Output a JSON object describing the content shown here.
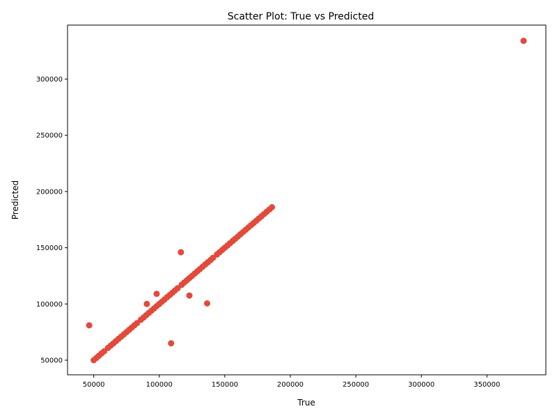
{
  "chart_data": {
    "type": "scatter",
    "title": "Scatter Plot: True vs Predicted",
    "xlabel": "True",
    "ylabel": "Predicted",
    "xlim": [
      30000,
      395000
    ],
    "ylim": [
      37000,
      348000
    ],
    "xticks": [
      50000,
      100000,
      150000,
      200000,
      250000,
      300000,
      350000
    ],
    "yticks": [
      50000,
      100000,
      150000,
      200000,
      250000,
      300000
    ],
    "grid": false,
    "legend": "none",
    "point_color": "#e24a3b",
    "series": [
      {
        "points": [
          {
            "x": 50000,
            "y": 50000
          },
          {
            "x": 52000,
            "y": 52000
          },
          {
            "x": 54000,
            "y": 54000
          },
          {
            "x": 56000,
            "y": 56000
          },
          {
            "x": 58000,
            "y": 58000
          },
          {
            "x": 61000,
            "y": 61000
          },
          {
            "x": 63000,
            "y": 63000
          },
          {
            "x": 65000,
            "y": 65000
          },
          {
            "x": 67000,
            "y": 67000
          },
          {
            "x": 69000,
            "y": 69000
          },
          {
            "x": 71000,
            "y": 71000
          },
          {
            "x": 73000,
            "y": 73000
          },
          {
            "x": 75000,
            "y": 75000
          },
          {
            "x": 77000,
            "y": 77000
          },
          {
            "x": 79000,
            "y": 79000
          },
          {
            "x": 81000,
            "y": 81000
          },
          {
            "x": 83000,
            "y": 83000
          },
          {
            "x": 86000,
            "y": 86000
          },
          {
            "x": 88000,
            "y": 88000
          },
          {
            "x": 90000,
            "y": 90000
          },
          {
            "x": 92000,
            "y": 92000
          },
          {
            "x": 94000,
            "y": 94000
          },
          {
            "x": 96000,
            "y": 96000
          },
          {
            "x": 98000,
            "y": 98000
          },
          {
            "x": 100000,
            "y": 100000
          },
          {
            "x": 102000,
            "y": 102000
          },
          {
            "x": 104000,
            "y": 104000
          },
          {
            "x": 106000,
            "y": 106000
          },
          {
            "x": 108000,
            "y": 108000
          },
          {
            "x": 110000,
            "y": 110000
          },
          {
            "x": 112000,
            "y": 112000
          },
          {
            "x": 114000,
            "y": 114000
          },
          {
            "x": 117000,
            "y": 117000
          },
          {
            "x": 119000,
            "y": 119000
          },
          {
            "x": 121000,
            "y": 121000
          },
          {
            "x": 123000,
            "y": 123000
          },
          {
            "x": 125000,
            "y": 125000
          },
          {
            "x": 127000,
            "y": 127000
          },
          {
            "x": 129000,
            "y": 129000
          },
          {
            "x": 131000,
            "y": 131000
          },
          {
            "x": 133000,
            "y": 133000
          },
          {
            "x": 135000,
            "y": 135000
          },
          {
            "x": 137000,
            "y": 137000
          },
          {
            "x": 139000,
            "y": 139000
          },
          {
            "x": 141000,
            "y": 141000
          },
          {
            "x": 144000,
            "y": 144000
          },
          {
            "x": 146000,
            "y": 146000
          },
          {
            "x": 148000,
            "y": 148000
          },
          {
            "x": 150000,
            "y": 150000
          },
          {
            "x": 152000,
            "y": 152000
          },
          {
            "x": 154000,
            "y": 154000
          },
          {
            "x": 156000,
            "y": 156000
          },
          {
            "x": 158000,
            "y": 158000
          },
          {
            "x": 160000,
            "y": 160000
          },
          {
            "x": 162000,
            "y": 162000
          },
          {
            "x": 164000,
            "y": 164000
          },
          {
            "x": 166000,
            "y": 166000
          },
          {
            "x": 168000,
            "y": 168000
          },
          {
            "x": 170000,
            "y": 170000
          },
          {
            "x": 172000,
            "y": 172000
          },
          {
            "x": 174000,
            "y": 174000
          },
          {
            "x": 176000,
            "y": 176000
          },
          {
            "x": 178000,
            "y": 178000
          },
          {
            "x": 180000,
            "y": 180000
          },
          {
            "x": 182000,
            "y": 182000
          },
          {
            "x": 184000,
            "y": 184000
          },
          {
            "x": 186000,
            "y": 186000
          },
          {
            "x": 378000,
            "y": 334000
          },
          {
            "x": 116500,
            "y": 146000
          },
          {
            "x": 98000,
            "y": 109000
          },
          {
            "x": 90500,
            "y": 100000
          },
          {
            "x": 123000,
            "y": 107500
          },
          {
            "x": 136500,
            "y": 100500
          },
          {
            "x": 46500,
            "y": 81000
          },
          {
            "x": 109000,
            "y": 65000
          }
        ]
      }
    ]
  }
}
